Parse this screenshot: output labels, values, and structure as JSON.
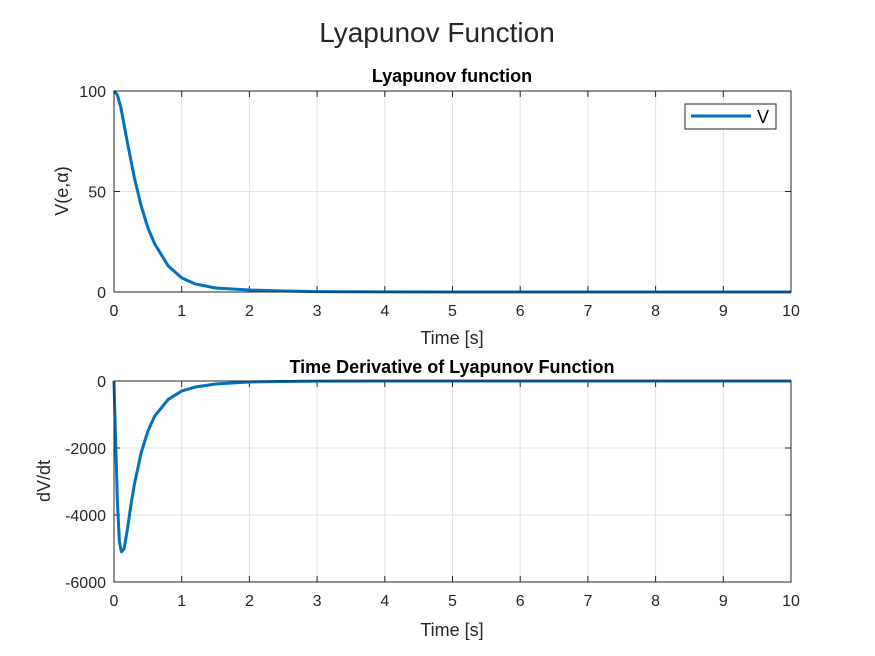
{
  "figure": {
    "title": "Lyapunov Function"
  },
  "colors": {
    "line": "#0072BD",
    "grid": "#e3e3e3",
    "axis": "#262626"
  },
  "chart_data": [
    {
      "type": "line",
      "title": "Lyapunov function",
      "xlabel": "Time [s]",
      "ylabel": "V(e,α)",
      "xlim": [
        0,
        10
      ],
      "ylim": [
        0,
        100
      ],
      "xticks": [
        0,
        1,
        2,
        3,
        4,
        5,
        6,
        7,
        8,
        9,
        10
      ],
      "yticks": [
        0,
        50,
        100
      ],
      "grid": true,
      "legend": {
        "position": "top-right",
        "entries": [
          "V"
        ]
      },
      "series": [
        {
          "name": "V",
          "x": [
            0,
            0.05,
            0.1,
            0.15,
            0.2,
            0.3,
            0.4,
            0.5,
            0.6,
            0.8,
            1.0,
            1.2,
            1.5,
            2.0,
            2.5,
            3.0,
            4.0,
            5.0,
            6.0,
            7.0,
            8.0,
            9.0,
            10.0
          ],
          "y": [
            100,
            98,
            92,
            83,
            74,
            57,
            43,
            32,
            24,
            13,
            7,
            4,
            2,
            1,
            0.5,
            0.2,
            0.05,
            0,
            0,
            0,
            0,
            0,
            0
          ]
        }
      ]
    },
    {
      "type": "line",
      "title": "Time Derivative of Lyapunov Function",
      "xlabel": "Time [s]",
      "ylabel": "dV/dt",
      "xlim": [
        0,
        10
      ],
      "ylim": [
        -6000,
        0
      ],
      "xticks": [
        0,
        1,
        2,
        3,
        4,
        5,
        6,
        7,
        8,
        9,
        10
      ],
      "yticks": [
        -6000,
        -4000,
        -2000,
        0
      ],
      "grid": true,
      "series": [
        {
          "name": "",
          "x": [
            0,
            0.02,
            0.05,
            0.08,
            0.11,
            0.15,
            0.2,
            0.25,
            0.3,
            0.4,
            0.5,
            0.6,
            0.8,
            1.0,
            1.2,
            1.5,
            2.0,
            2.5,
            3.0,
            4.0,
            5.0,
            6.0,
            7.0,
            8.0,
            9.0,
            10.0
          ],
          "y": [
            0,
            -1500,
            -3600,
            -4800,
            -5100,
            -5000,
            -4400,
            -3700,
            -3100,
            -2150,
            -1500,
            -1050,
            -550,
            -300,
            -180,
            -90,
            -30,
            -15,
            -5,
            0,
            0,
            0,
            0,
            0,
            0,
            0
          ]
        }
      ]
    }
  ]
}
